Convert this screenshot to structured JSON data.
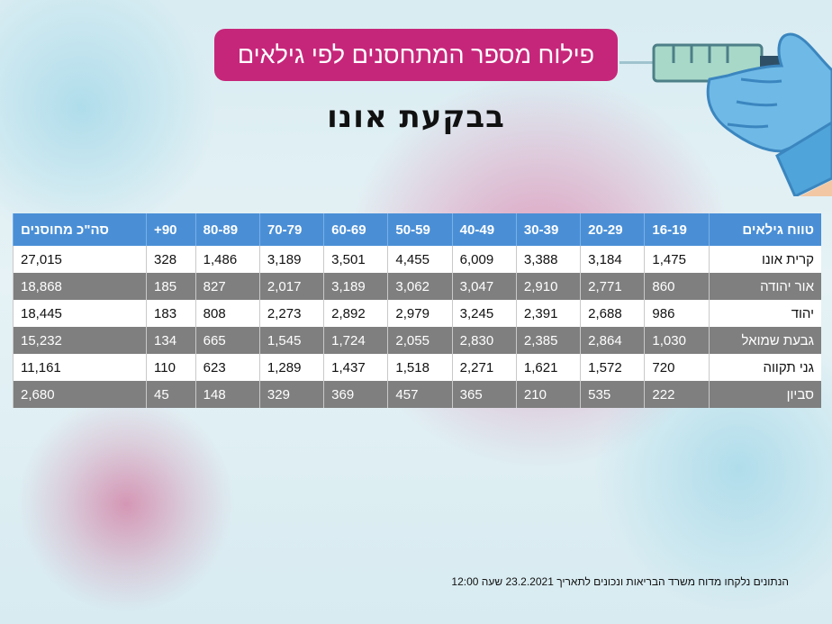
{
  "title": "פילוח מספר המתחסנים לפי גילאים",
  "subtitle": "בבקעת אונו",
  "table": {
    "headers": [
      "טווח גילאים",
      "16-19",
      "20-29",
      "30-39",
      "40-49",
      "50-59",
      "60-69",
      "70-79",
      "80-89",
      "90+",
      "סה\"כ מחוסנים"
    ],
    "rows": [
      {
        "name": "קרית אונו",
        "values": [
          "1,475",
          "3,184",
          "3,388",
          "6,009",
          "4,455",
          "3,501",
          "3,189",
          "1,486",
          "328",
          "27,015"
        ]
      },
      {
        "name": "אור יהודה",
        "values": [
          "860",
          "2,771",
          "2,910",
          "3,047",
          "3,062",
          "3,189",
          "2,017",
          "827",
          "185",
          "18,868"
        ]
      },
      {
        "name": "יהוד",
        "values": [
          "986",
          "2,688",
          "2,391",
          "3,245",
          "2,979",
          "2,892",
          "2,273",
          "808",
          "183",
          "18,445"
        ]
      },
      {
        "name": "גבעת שמואל",
        "values": [
          "1,030",
          "2,864",
          "2,385",
          "2,830",
          "2,055",
          "1,724",
          "1,545",
          "665",
          "134",
          "15,232"
        ]
      },
      {
        "name": "גני תקווה",
        "values": [
          "720",
          "1,572",
          "1,621",
          "2,271",
          "1,518",
          "1,437",
          "1,289",
          "623",
          "110",
          "11,161"
        ]
      },
      {
        "name": "סביון",
        "values": [
          "222",
          "535",
          "210",
          "365",
          "457",
          "369",
          "329",
          "148",
          "45",
          "2,680"
        ]
      }
    ]
  },
  "footnote": "הנתונים נלקחו מדוח משרד הבריאות ונכונים לתאריך 23.2.2021 שעה 12:00",
  "colors": {
    "title_bg": "#c6267a",
    "header_bg": "#4a8fd6",
    "row_dark": "#7f7f7f",
    "row_light": "#ffffff"
  },
  "icons": [
    "syringe-icon",
    "gloved-hand-icon"
  ]
}
